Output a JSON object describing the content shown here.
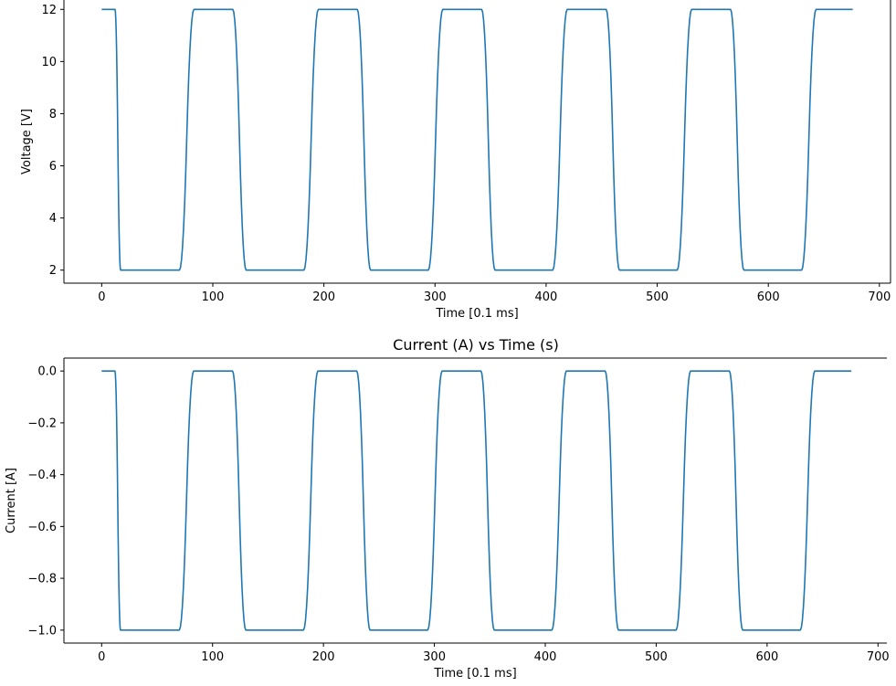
{
  "chart_data": [
    {
      "type": "line",
      "title": "",
      "xlabel": "Time [0.1 ms]",
      "ylabel": "Voltage [V]",
      "xlim": [
        -34,
        710
      ],
      "ylim": [
        1.5,
        12.5
      ],
      "xticks": [
        0,
        100,
        200,
        300,
        400,
        500,
        600,
        700
      ],
      "yticks": [
        2,
        4,
        6,
        8,
        10,
        12
      ],
      "grid": false,
      "series": [
        {
          "color": "#1f77b4",
          "keypoints": [
            [
              0,
              12
            ],
            [
              12,
              12
            ],
            [
              17,
              2
            ],
            [
              70,
              2
            ],
            [
              83,
              12
            ],
            [
              118,
              12
            ],
            [
              130,
              2
            ],
            [
              182,
              2
            ],
            [
              195,
              12
            ],
            [
              230,
              12
            ],
            [
              242,
              2
            ],
            [
              294,
              2
            ],
            [
              307,
              12
            ],
            [
              342,
              12
            ],
            [
              354,
              2
            ],
            [
              406,
              2
            ],
            [
              419,
              12
            ],
            [
              454,
              12
            ],
            [
              466,
              2
            ],
            [
              518,
              2
            ],
            [
              531,
              12
            ],
            [
              566,
              12
            ],
            [
              578,
              2
            ],
            [
              630,
              2
            ],
            [
              643,
              12
            ],
            [
              676,
              12
            ]
          ]
        }
      ]
    },
    {
      "type": "line",
      "title": "Current (A) vs Time (s)",
      "xlabel": "Time [0.1 ms]",
      "ylabel": "Current [A]",
      "xlim": [
        -34,
        708
      ],
      "ylim": [
        -1.05,
        0.05
      ],
      "xticks": [
        0,
        100,
        200,
        300,
        400,
        500,
        600,
        700
      ],
      "yticks": [
        0.0,
        -0.2,
        -0.4,
        -0.6,
        -0.8,
        -1.0
      ],
      "ytick_labels": [
        "0.0",
        "−0.2",
        "−0.4",
        "−0.6",
        "−0.8",
        "−1.0"
      ],
      "grid": false,
      "series": [
        {
          "color": "#1f77b4",
          "keypoints": [
            [
              0,
              0
            ],
            [
              12,
              0
            ],
            [
              17,
              -1
            ],
            [
              70,
              -1
            ],
            [
              83,
              0
            ],
            [
              118,
              0
            ],
            [
              130,
              -1
            ],
            [
              182,
              -1
            ],
            [
              195,
              0
            ],
            [
              230,
              0
            ],
            [
              242,
              -1
            ],
            [
              294,
              -1
            ],
            [
              307,
              0
            ],
            [
              342,
              0
            ],
            [
              354,
              -1
            ],
            [
              406,
              -1
            ],
            [
              419,
              0
            ],
            [
              454,
              0
            ],
            [
              466,
              -1
            ],
            [
              518,
              -1
            ],
            [
              531,
              0
            ],
            [
              566,
              0
            ],
            [
              578,
              -1
            ],
            [
              630,
              -1
            ],
            [
              643,
              0
            ],
            [
              676,
              0
            ]
          ]
        }
      ]
    }
  ]
}
